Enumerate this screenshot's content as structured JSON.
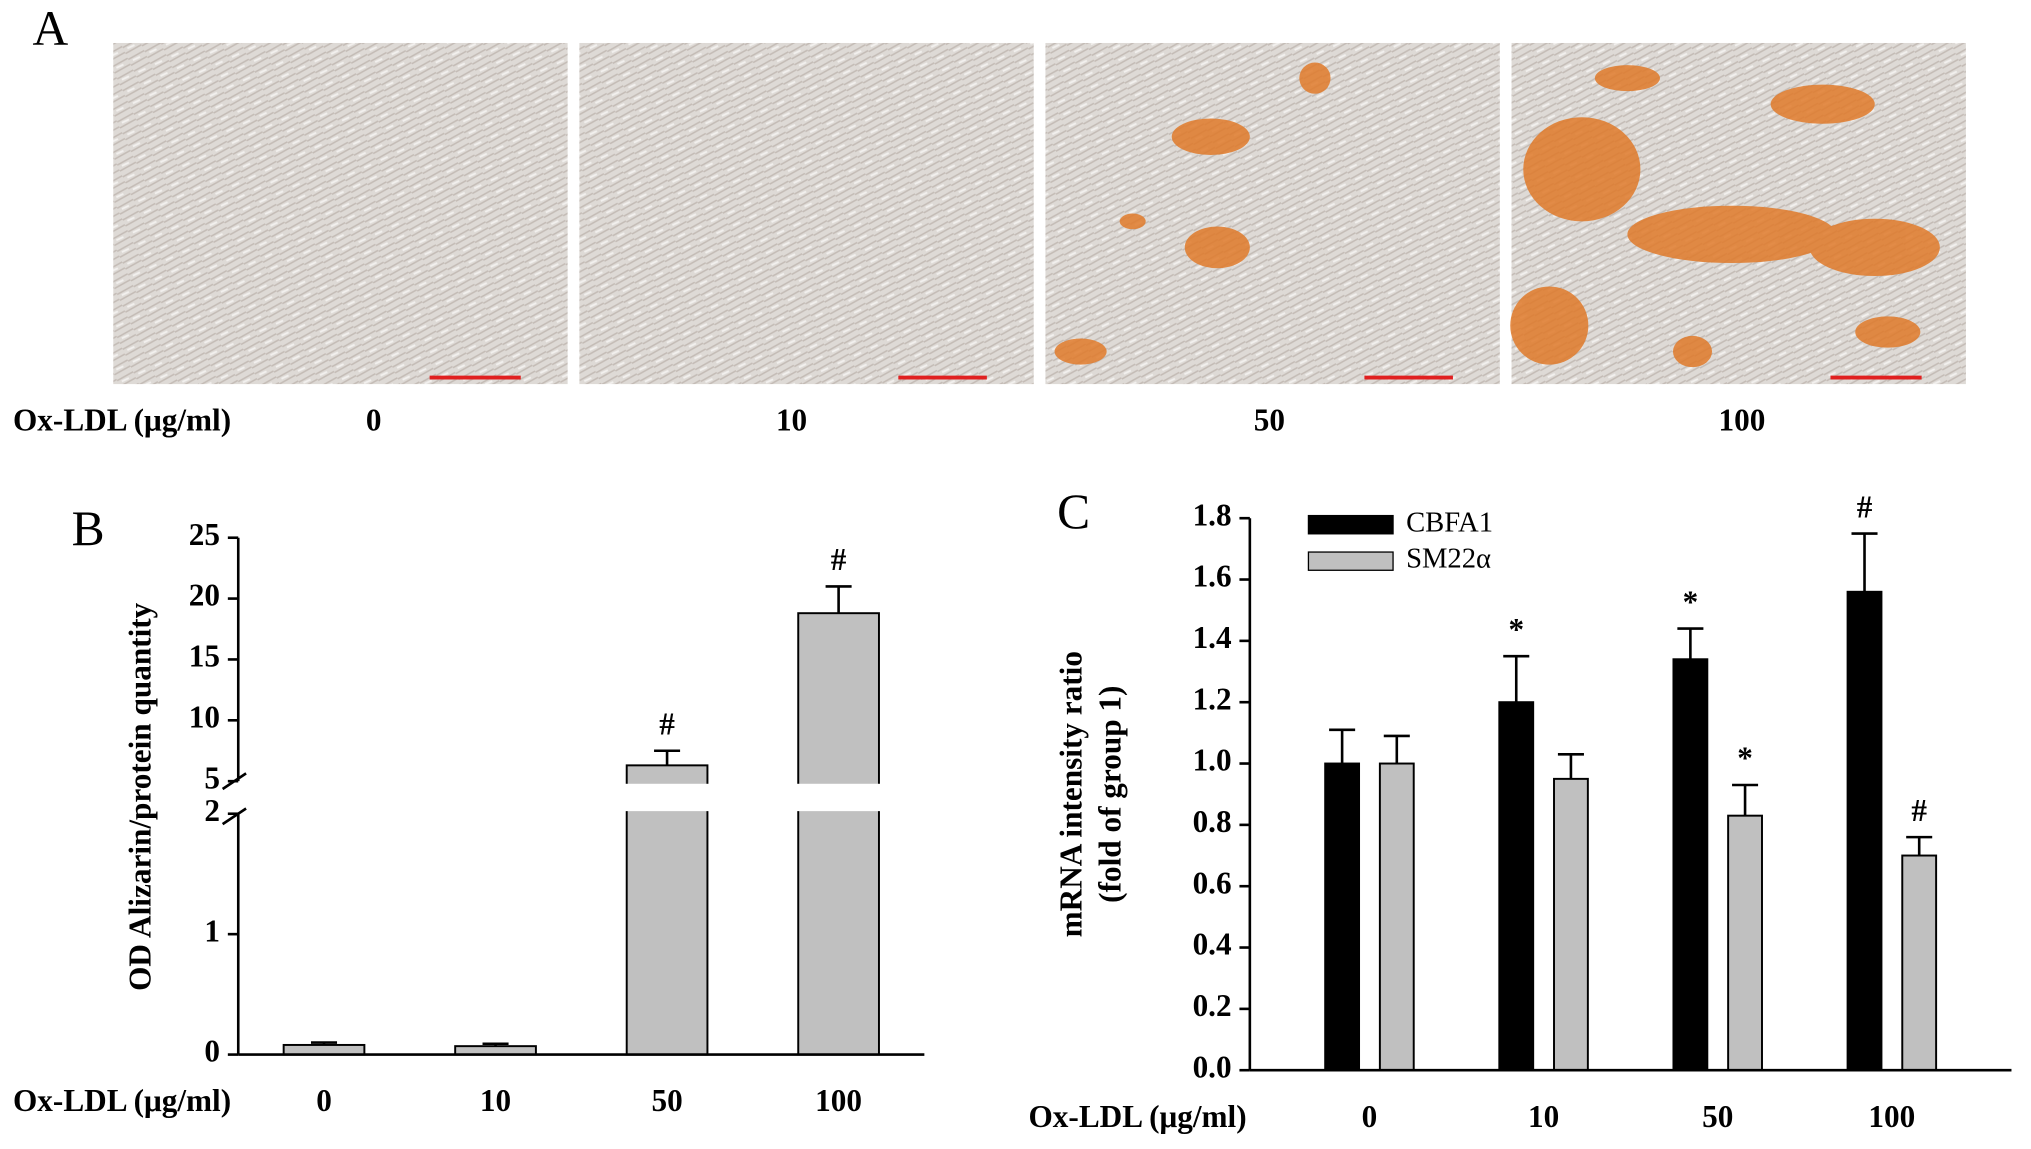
{
  "panel_a": {
    "label": "A",
    "xlabel": "Ox-LDL (μg/ml)",
    "categories": [
      "0",
      "10",
      "50",
      "100"
    ]
  },
  "chart_data": [
    {
      "type": "bar",
      "panel": "B",
      "ylabel": "OD Alizarin/protein quantity",
      "xlabel": "Ox-LDL (μg/ml)",
      "categories": [
        "0",
        "10",
        "50",
        "100"
      ],
      "values": [
        0.08,
        0.07,
        6.3,
        18.8
      ],
      "errors": [
        0.02,
        0.02,
        1.2,
        2.2
      ],
      "markers": [
        null,
        null,
        "#",
        "#"
      ],
      "color": "#c0c0c0",
      "ylim": [
        0,
        25
      ],
      "ybreak": [
        2,
        5
      ],
      "yticks": [
        0,
        1,
        2,
        5,
        10,
        15,
        20,
        25
      ]
    },
    {
      "type": "bar",
      "panel": "C",
      "ylabel": [
        "mRNA  intensity ratio",
        "(fold of group 1)"
      ],
      "xlabel": "Ox-LDL (μg/ml)",
      "categories": [
        "0",
        "10",
        "50",
        "100"
      ],
      "series": [
        {
          "name": "CBFA1",
          "color": "#000000",
          "values": [
            1.0,
            1.2,
            1.34,
            1.56
          ],
          "errors": [
            0.11,
            0.15,
            0.1,
            0.19
          ],
          "markers": [
            null,
            "*",
            "*",
            "#"
          ]
        },
        {
          "name": "SM22α",
          "color": "#c0c0c0",
          "values": [
            1.0,
            0.95,
            0.83,
            0.7
          ],
          "errors": [
            0.09,
            0.08,
            0.1,
            0.06
          ],
          "markers": [
            null,
            null,
            "*",
            "#"
          ]
        }
      ],
      "ylim": [
        0,
        1.8
      ],
      "yticks": [
        {
          "value": 0,
          "label": "0.0"
        },
        0.2,
        0.4,
        0.6,
        0.8,
        {
          "value": 1,
          "label": "1.0"
        },
        1.2,
        1.4,
        1.6,
        1.8
      ]
    }
  ]
}
